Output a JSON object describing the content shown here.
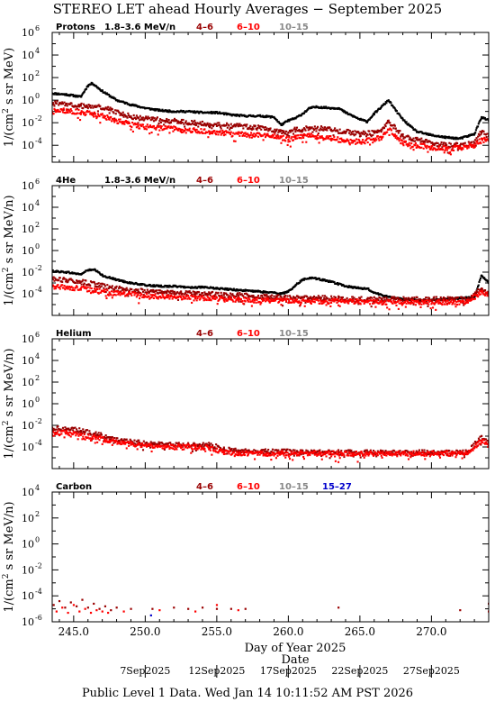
{
  "page": {
    "title": "STEREO LET ahead Hourly Averages − September 2025",
    "footer": "Public Level 1 Data. Wed Jan 14 10:11:52 AM PST 2026"
  },
  "colors": {
    "1.8-3.6": "#000000",
    "4-6": "#990000",
    "6-10": "#ff0000",
    "10-15": "#888888",
    "15-27": "#0000cc"
  },
  "chart_data": [
    {
      "type": "scatter",
      "panel": "Protons",
      "label": "Protons",
      "ylabel": "1/(cm² s sr MeV)",
      "ylabel_main": "1/(cm",
      "ylabel_sup": "2",
      "ylabel_rest": " s sr MeV)",
      "xlim": [
        243.5,
        274.0
      ],
      "ylim_log10": [
        -5.5,
        6
      ],
      "log_y": true,
      "y_ticks": [
        {
          "e": 6,
          "text": "6"
        },
        {
          "e": 4,
          "text": "4"
        },
        {
          "e": 2,
          "text": "2"
        },
        {
          "e": 0,
          "text": "0"
        },
        {
          "e": -2,
          "text": "-2"
        },
        {
          "e": -4,
          "text": "-4"
        }
      ],
      "series": [
        {
          "name": "1.8–3.6 MeV/n",
          "key": "1.8-3.6",
          "x": [
            243.5,
            244.5,
            245.5,
            246.0,
            246.3,
            247.0,
            248.0,
            249.0,
            250.0,
            251.0,
            252.0,
            253.0,
            254.0,
            255.0,
            256.0,
            257.0,
            258.0,
            259.0,
            259.5,
            260.0,
            260.5,
            261.0,
            261.5,
            262.0,
            263.0,
            263.5,
            264.0,
            265.0,
            265.5,
            266.0,
            266.5,
            267.0,
            267.5,
            268.0,
            268.5,
            269.0,
            270.0,
            271.0,
            272.0,
            273.0,
            273.5,
            274.0
          ],
          "log10_y": [
            0.6,
            0.5,
            0.3,
            1.3,
            1.5,
            0.8,
            0.0,
            -0.4,
            -0.7,
            -0.9,
            -1.0,
            -1.0,
            -1.1,
            -1.1,
            -1.3,
            -1.4,
            -1.4,
            -1.5,
            -2.2,
            -1.8,
            -1.6,
            -1.2,
            -0.7,
            -0.6,
            -0.7,
            -0.7,
            -1.1,
            -1.7,
            -1.9,
            -1.2,
            -0.6,
            0.0,
            -0.9,
            -1.7,
            -2.3,
            -2.8,
            -3.1,
            -3.3,
            -3.4,
            -3.0,
            -1.5,
            -1.8
          ]
        },
        {
          "name": "4–6",
          "key": "4-6",
          "x": [
            243.5,
            244.5,
            245.5,
            246.5,
            247.5,
            248.5,
            249.5,
            250.5,
            251.5,
            252.5,
            253.5,
            254.5,
            255.5,
            256.5,
            257.5,
            258.5,
            259.5,
            260.0,
            260.5,
            261.0,
            261.5,
            262.0,
            263.0,
            264.0,
            265.0,
            266.0,
            266.5,
            267.0,
            267.5,
            268.0,
            269.0,
            270.0,
            271.0,
            272.0,
            273.0,
            273.5,
            274.0
          ],
          "log10_y": [
            -0.3,
            -0.3,
            -0.5,
            -0.5,
            -0.8,
            -1.3,
            -1.6,
            -1.7,
            -1.8,
            -1.9,
            -2.0,
            -2.1,
            -2.2,
            -2.3,
            -2.4,
            -2.5,
            -2.7,
            -2.9,
            -2.6,
            -2.6,
            -2.4,
            -2.5,
            -2.6,
            -2.8,
            -3.0,
            -2.9,
            -2.6,
            -1.8,
            -2.5,
            -3.2,
            -3.5,
            -3.8,
            -4.0,
            -4.0,
            -3.8,
            -2.8,
            -3.2
          ]
        },
        {
          "name": "6–10",
          "key": "6-10",
          "x": [
            243.5,
            244.5,
            245.5,
            246.5,
            247.5,
            248.5,
            249.5,
            250.5,
            251.5,
            252.5,
            253.5,
            254.5,
            255.5,
            256.5,
            257.5,
            258.5,
            259.5,
            260.0,
            260.5,
            261.0,
            261.5,
            262.0,
            263.0,
            264.0,
            265.0,
            266.0,
            266.5,
            267.0,
            267.5,
            268.0,
            269.0,
            270.0,
            271.0,
            272.0,
            273.0,
            273.5,
            274.0
          ],
          "log10_y": [
            -1.0,
            -0.9,
            -1.1,
            -1.2,
            -1.6,
            -2.0,
            -2.3,
            -2.4,
            -2.5,
            -2.6,
            -2.7,
            -2.8,
            -2.9,
            -3.0,
            -3.1,
            -3.1,
            -3.3,
            -3.5,
            -3.3,
            -3.2,
            -3.1,
            -3.3,
            -3.4,
            -3.6,
            -3.7,
            -3.5,
            -3.3,
            -2.6,
            -3.2,
            -3.8,
            -4.0,
            -4.2,
            -4.3,
            -4.2,
            -4.0,
            -3.4,
            -3.6
          ]
        }
      ]
    },
    {
      "type": "scatter",
      "panel": "4He",
      "label": "4He",
      "ylabel": "1/(cm² s sr MeV/n)",
      "ylabel_main": "1/(cm",
      "ylabel_sup": "2",
      "ylabel_rest": " s sr MeV/n)",
      "xlim": [
        243.5,
        274.0
      ],
      "ylim_log10": [
        -6,
        6
      ],
      "log_y": true,
      "y_ticks": [
        {
          "e": 6,
          "text": "6"
        },
        {
          "e": 4,
          "text": "4"
        },
        {
          "e": 2,
          "text": "2"
        },
        {
          "e": 0,
          "text": "0"
        },
        {
          "e": -2,
          "text": "-2"
        },
        {
          "e": -4,
          "text": "-4"
        }
      ],
      "series": [
        {
          "name": "1.8–3.6 MeV/n",
          "key": "1.8-3.6",
          "x": [
            243.5,
            244.5,
            245.5,
            246.0,
            246.5,
            247.0,
            248.0,
            249.0,
            250.0,
            251.0,
            252.0,
            253.0,
            254.0,
            255.0,
            256.0,
            257.0,
            258.0,
            259.0,
            259.5,
            260.0,
            260.5,
            261.0,
            261.5,
            262.0,
            263.0,
            264.0,
            265.0,
            265.5,
            266.0,
            267.0,
            268.0,
            269.0,
            270.0,
            271.0,
            272.0,
            273.0,
            273.5,
            274.0
          ],
          "log10_y": [
            -1.9,
            -2.0,
            -2.2,
            -1.8,
            -1.8,
            -2.3,
            -2.7,
            -3.0,
            -3.2,
            -3.3,
            -3.3,
            -3.4,
            -3.4,
            -3.5,
            -3.6,
            -3.7,
            -3.8,
            -3.9,
            -4.0,
            -3.8,
            -3.2,
            -2.7,
            -2.5,
            -2.6,
            -2.9,
            -3.3,
            -3.5,
            -3.5,
            -3.9,
            -4.3,
            -4.5,
            -4.6,
            -4.6,
            -4.5,
            -4.4,
            -4.3,
            -2.3,
            -3.0
          ]
        },
        {
          "name": "4–6",
          "key": "4-6",
          "x": [
            243.5,
            244.5,
            245.5,
            246.5,
            247.5,
            248.5,
            249.5,
            250.5,
            251.5,
            252.5,
            253.5,
            254.5,
            255.5,
            256.5,
            257.5,
            258.5,
            259.5,
            260.5,
            261.5,
            262.5,
            263.5,
            264.5,
            265.5,
            266.5,
            267.5,
            268.5,
            269.5,
            270.5,
            271.5,
            272.5,
            273.5,
            274.0
          ],
          "log10_y": [
            -2.6,
            -2.7,
            -2.9,
            -3.1,
            -3.4,
            -3.6,
            -3.7,
            -3.8,
            -3.9,
            -3.9,
            -4.0,
            -4.0,
            -4.1,
            -4.1,
            -4.2,
            -4.3,
            -4.3,
            -4.4,
            -4.4,
            -4.4,
            -4.4,
            -4.5,
            -4.5,
            -4.5,
            -4.5,
            -4.5,
            -4.5,
            -4.5,
            -4.5,
            -4.5,
            -3.5,
            -4.0
          ]
        },
        {
          "name": "6–10",
          "key": "6-10",
          "x": [
            243.5,
            244.5,
            245.5,
            246.5,
            247.5,
            248.5,
            249.5,
            250.5,
            251.5,
            252.5,
            253.5,
            254.5,
            255.5,
            256.5,
            257.5,
            258.5,
            259.5,
            260.5,
            261.5,
            262.5,
            263.5,
            264.5,
            265.5,
            266.5,
            267.5,
            268.5,
            269.5,
            270.5,
            271.5,
            272.5,
            273.5,
            274.0
          ],
          "log10_y": [
            -3.3,
            -3.4,
            -3.5,
            -3.7,
            -3.9,
            -4.0,
            -4.1,
            -4.2,
            -4.3,
            -4.3,
            -4.4,
            -4.4,
            -4.5,
            -4.5,
            -4.6,
            -4.6,
            -4.6,
            -4.7,
            -4.7,
            -4.7,
            -4.7,
            -4.7,
            -4.7,
            -4.8,
            -4.8,
            -4.8,
            -4.8,
            -4.8,
            -4.8,
            -4.8,
            -3.8,
            -4.2
          ]
        }
      ]
    },
    {
      "type": "scatter",
      "panel": "Helium",
      "label": "Helium",
      "ylabel": "1/(cm² s sr MeV/n)",
      "ylabel_main": "1/(cm",
      "ylabel_sup": "2",
      "ylabel_rest": " s sr MeV/n)",
      "xlim": [
        243.5,
        274.0
      ],
      "ylim_log10": [
        -6,
        6
      ],
      "log_y": true,
      "y_ticks": [
        {
          "e": 6,
          "text": "6"
        },
        {
          "e": 4,
          "text": "4"
        },
        {
          "e": 2,
          "text": "2"
        },
        {
          "e": 0,
          "text": "0"
        },
        {
          "e": -2,
          "text": "-2"
        },
        {
          "e": -4,
          "text": "-4"
        }
      ],
      "series": [
        {
          "name": "4–6",
          "key": "4-6",
          "x": [
            243.5,
            244.5,
            245.5,
            246.5,
            247.5,
            248.5,
            249.5,
            250.5,
            251.5,
            252.5,
            253.5,
            254.5,
            255.5,
            256.5,
            257.5,
            258.5,
            259.5,
            260.5,
            261.5,
            262.5,
            263.5,
            264.5,
            265.5,
            266.5,
            267.5,
            268.5,
            269.5,
            270.5,
            271.5,
            272.5,
            273.5,
            274.0
          ],
          "log10_y": [
            -2.2,
            -2.3,
            -2.5,
            -2.8,
            -3.1,
            -3.4,
            -3.6,
            -3.7,
            -3.7,
            -3.8,
            -3.8,
            -3.8,
            -4.2,
            -4.3,
            -4.4,
            -4.4,
            -4.4,
            -4.5,
            -4.5,
            -4.5,
            -4.5,
            -4.5,
            -4.5,
            -4.5,
            -4.5,
            -4.5,
            -4.5,
            -4.5,
            -4.5,
            -4.5,
            -3.0,
            -3.6
          ]
        },
        {
          "name": "6–10",
          "key": "6-10",
          "x": [
            243.5,
            244.5,
            245.5,
            246.5,
            247.5,
            248.5,
            249.5,
            250.5,
            251.5,
            252.5,
            253.5,
            254.5,
            255.5,
            256.5,
            257.5,
            258.5,
            259.5,
            260.5,
            261.5,
            262.5,
            263.5,
            264.5,
            265.5,
            266.5,
            267.5,
            268.5,
            269.5,
            270.5,
            271.5,
            272.5,
            273.5,
            274.0
          ],
          "log10_y": [
            -2.6,
            -2.7,
            -2.9,
            -3.1,
            -3.4,
            -3.7,
            -3.8,
            -3.9,
            -4.0,
            -4.0,
            -4.0,
            -4.1,
            -4.5,
            -4.6,
            -4.6,
            -4.6,
            -4.6,
            -4.6,
            -4.6,
            -4.6,
            -4.6,
            -4.6,
            -4.6,
            -4.6,
            -4.6,
            -4.6,
            -4.6,
            -4.6,
            -4.6,
            -4.6,
            -3.4,
            -3.9
          ]
        }
      ]
    },
    {
      "type": "scatter",
      "panel": "Carbon",
      "label": "Carbon",
      "ylabel": "1/(cm² s sr MeV/n)",
      "ylabel_main": "1/(cm",
      "ylabel_sup": "2",
      "ylabel_rest": " s sr MeV/n)",
      "xlim": [
        243.5,
        274.0
      ],
      "ylim_log10": [
        -6,
        4
      ],
      "log_y": true,
      "y_ticks": [
        {
          "e": 4,
          "text": "4"
        },
        {
          "e": 2,
          "text": "2"
        },
        {
          "e": 0,
          "text": "0"
        },
        {
          "e": -2,
          "text": "-2"
        },
        {
          "e": -4,
          "text": "-4"
        },
        {
          "e": -6,
          "text": "-6"
        }
      ],
      "series": [
        {
          "name": "4–6",
          "key": "4-6",
          "x": [
            243.6,
            244.0,
            244.4,
            244.8,
            245.2,
            245.6,
            246.0,
            246.4,
            246.8,
            247.2,
            247.6,
            248.0,
            249.0,
            250.5,
            252.0,
            253.0,
            254.0,
            255.0,
            256.0,
            257.0,
            263.5,
            272.0,
            274.0
          ],
          "log10_y": [
            -4.7,
            -4.4,
            -4.9,
            -4.5,
            -4.8,
            -4.3,
            -4.9,
            -4.6,
            -5.0,
            -4.8,
            -5.1,
            -4.9,
            -5.0,
            -5.0,
            -4.9,
            -5.0,
            -4.9,
            -5.0,
            -5.0,
            -5.0,
            -4.9,
            -5.1,
            -4.6
          ]
        },
        {
          "name": "6–10",
          "key": "6-10",
          "x": [
            243.8,
            244.2,
            244.6,
            245.0,
            245.4,
            245.8,
            246.2,
            246.6,
            247.0,
            247.4,
            248.5,
            251.0,
            253.5,
            255.0,
            256.5,
            274.0
          ],
          "log10_y": [
            -5.2,
            -4.9,
            -5.3,
            -4.7,
            -5.2,
            -5.0,
            -5.3,
            -5.1,
            -5.2,
            -5.3,
            -5.2,
            -5.1,
            -5.2,
            -4.7,
            -5.1,
            -5.2
          ]
        },
        {
          "name": "15–27",
          "key": "15-27",
          "x": [
            250.4
          ],
          "log10_y": [
            -5.5
          ]
        }
      ]
    }
  ],
  "legend_labels": {
    "first": "1.8–3.6 MeV/n",
    "b": "4–6",
    "c": "6–10",
    "d": "10–15",
    "e": "15–27"
  },
  "xaxis": {
    "ticks": [
      {
        "value": 245,
        "text": "245.0"
      },
      {
        "value": 250,
        "text": "250.0"
      },
      {
        "value": 255,
        "text": "255.0"
      },
      {
        "value": 260,
        "text": "260.0"
      },
      {
        "value": 265,
        "text": "265.0"
      },
      {
        "value": 270,
        "text": "270.0"
      }
    ],
    "label": "Day of Year 2025",
    "sublabel": "Date",
    "dates": [
      {
        "doy": 250,
        "text": "7Sep2025"
      },
      {
        "doy": 255,
        "text": "12Sep2025"
      },
      {
        "doy": 260,
        "text": "17Sep2025"
      },
      {
        "doy": 265,
        "text": "22Sep2025"
      },
      {
        "doy": 270,
        "text": "27Sep2025"
      }
    ]
  }
}
